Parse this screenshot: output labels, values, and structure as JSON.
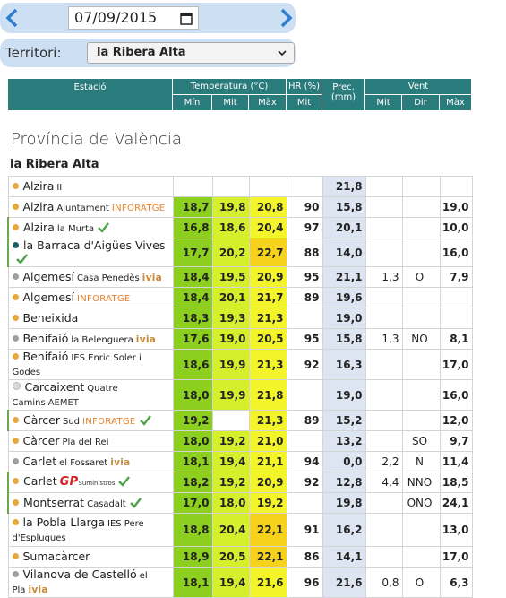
{
  "nav": {
    "date": "07/09/2015"
  },
  "filter": {
    "label": "Territori:",
    "value": "la Ribera Alta"
  },
  "table": {
    "columns": {
      "station": "Estació",
      "temp": "Temperatura (°C)",
      "hr": "HR (%)",
      "prec": "Prec. (mm)",
      "wind": "Vent"
    },
    "subcolumns": [
      "Mín",
      "Mit",
      "Màx",
      "Mit",
      "Mit",
      "Dir",
      "Màx"
    ]
  },
  "province": "Província de València",
  "region": "la Ribera Alta",
  "rows": [
    {
      "name": "Alzira",
      "sub": "II",
      "dot": "#e8a93c",
      "cells": [
        null,
        null,
        null,
        null,
        "21,8",
        null,
        null,
        null
      ]
    },
    {
      "name": "Alzira",
      "sub": "Ajuntament",
      "tag": "INFORATGE",
      "dot": "#e8a93c",
      "cells": [
        "18,7",
        "19,8",
        "20,8",
        "90",
        "15,8",
        null,
        null,
        "19,0"
      ]
    },
    {
      "name": "Alzira",
      "sub": "la Murta",
      "dot": "#e8a93c",
      "check": true,
      "cells": [
        "16,8",
        "18,6",
        "20,4",
        "97",
        "20,1",
        null,
        null,
        "10,0"
      ]
    },
    {
      "name": "la Barraca d'Aigües Vives",
      "dot": "#1d5e63",
      "check": true,
      "cells": [
        "17,7",
        "20,2",
        "22,7",
        "88",
        "14,0",
        null,
        null,
        "16,0"
      ]
    },
    {
      "name": "Algemesí",
      "sub": "Casa Penedès",
      "tag": "ivia",
      "dot": "#a0a0a0",
      "cells": [
        "18,4",
        "19,5",
        "20,9",
        "95",
        "21,1",
        "1,3",
        "O",
        "7,9"
      ]
    },
    {
      "name": "Algemesí",
      "tag": "INFORATGE",
      "dot": "#e8a93c",
      "cells": [
        "18,4",
        "20,1",
        "21,7",
        "89",
        "19,6",
        null,
        null,
        null
      ]
    },
    {
      "name": "Beneixida",
      "dot": "#e8a93c",
      "cells": [
        "18,3",
        "19,3",
        "21,3",
        null,
        "19,0",
        null,
        null,
        null
      ]
    },
    {
      "name": "Benifaió",
      "sub": "la Belenguera",
      "tag": "ivia",
      "dot": "#a0a0a0",
      "cells": [
        "17,6",
        "19,0",
        "20,5",
        "95",
        "15,8",
        "1,3",
        "NO",
        "8,1"
      ]
    },
    {
      "name": "Benifaió",
      "sub": "IES Enric Soler i Godes",
      "dot": "#e8a93c",
      "cells": [
        "18,6",
        "19,9",
        "21,3",
        "92",
        "16,3",
        null,
        null,
        "17,0"
      ]
    },
    {
      "name": "Carcaixent",
      "sub": "Quatre Camins",
      "tag": "AEMET",
      "dot": "#d8d8d8",
      "cells": [
        "18,0",
        "19,9",
        "21,8",
        null,
        "19,0",
        null,
        null,
        "16,0"
      ]
    },
    {
      "name": "Càrcer",
      "sub": "Sud",
      "tag": "INFORATGE",
      "dot": "#e8a93c",
      "check": true,
      "cells": [
        "19,2",
        null,
        "21,3",
        "89",
        "15,2",
        null,
        null,
        "12,0"
      ]
    },
    {
      "name": "Càrcer",
      "sub": "Pla del Rei",
      "dot": "#e8a93c",
      "cells": [
        "18,0",
        "19,2",
        "21,0",
        null,
        "13,2",
        null,
        "SO",
        "9,7"
      ]
    },
    {
      "name": "Carlet",
      "sub": "el Fossaret",
      "tag": "ivia",
      "dot": "#a0a0a0",
      "cells": [
        "18,1",
        "19,4",
        "21,1",
        "94",
        "0,0",
        "2,2",
        "N",
        "11,4"
      ]
    },
    {
      "name": "Carlet",
      "tag": "GP",
      "tag2": "Suministros",
      "dot": "#e8a93c",
      "check": true,
      "cells": [
        "18,2",
        "19,2",
        "20,9",
        "92",
        "12,8",
        "4,4",
        "NNO",
        "18,5"
      ]
    },
    {
      "name": "Montserrat",
      "sub": "Casadalt",
      "dot": "#e8a93c",
      "check": true,
      "cells": [
        "17,0",
        "18,0",
        "19,2",
        null,
        "19,8",
        null,
        "ONO",
        "24,1"
      ]
    },
    {
      "name": "la Pobla Llarga",
      "sub": "IES Pere d'Esplugues",
      "dot": "#e8a93c",
      "cells": [
        "18,8",
        "20,4",
        "22,1",
        "91",
        "16,2",
        null,
        null,
        "13,0"
      ]
    },
    {
      "name": "Sumacàrcer",
      "dot": "#e8a93c",
      "cells": [
        "18,9",
        "20,5",
        "22,1",
        "86",
        "14,1",
        null,
        null,
        "17,0"
      ]
    },
    {
      "name": "Vilanova de Castelló",
      "sub": "el Pla",
      "tag": "ivia",
      "dot": "#a0a0a0",
      "cells": [
        "18,1",
        "19,4",
        "21,6",
        "96",
        "21,6",
        "0,8",
        "O",
        "6,3"
      ]
    }
  ]
}
